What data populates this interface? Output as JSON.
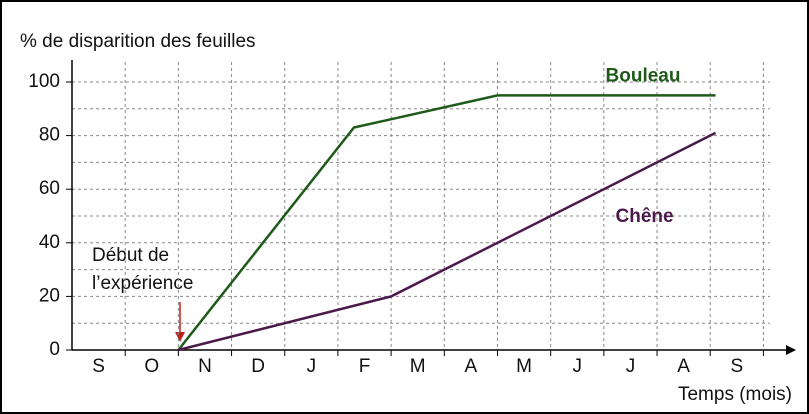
{
  "chart_data": {
    "type": "line",
    "y_label": "% de disparition des feuilles",
    "x_label": "Temps (mois)",
    "annotation": [
      "Début de",
      "l’expérience"
    ],
    "xlim": [
      -0.5,
      13
    ],
    "xticks": [
      {
        "value": 0,
        "label": "S"
      },
      {
        "value": 1,
        "label": "O"
      },
      {
        "value": 2,
        "label": "N"
      },
      {
        "value": 3,
        "label": "D"
      },
      {
        "value": 4,
        "label": "J"
      },
      {
        "value": 5,
        "label": "F"
      },
      {
        "value": 6,
        "label": "M"
      },
      {
        "value": 7,
        "label": "A"
      },
      {
        "value": 8,
        "label": "M"
      },
      {
        "value": 9,
        "label": "J"
      },
      {
        "value": 10,
        "label": "J"
      },
      {
        "value": 11,
        "label": "A"
      },
      {
        "value": 12,
        "label": "S"
      }
    ],
    "ylim": [
      0,
      100
    ],
    "yticks": [
      0,
      20,
      40,
      60,
      80,
      100
    ],
    "grid": true,
    "series": [
      {
        "name": "Bouleau",
        "color": "#1f5a1a",
        "x": [
          1.5,
          4.8,
          7.5,
          11.6
        ],
        "values": [
          0,
          83,
          95,
          95
        ]
      },
      {
        "name": "Chêne",
        "color": "#4a1a4a",
        "x": [
          1.5,
          5.5,
          11.6
        ],
        "values": [
          0,
          20,
          81
        ]
      }
    ]
  }
}
